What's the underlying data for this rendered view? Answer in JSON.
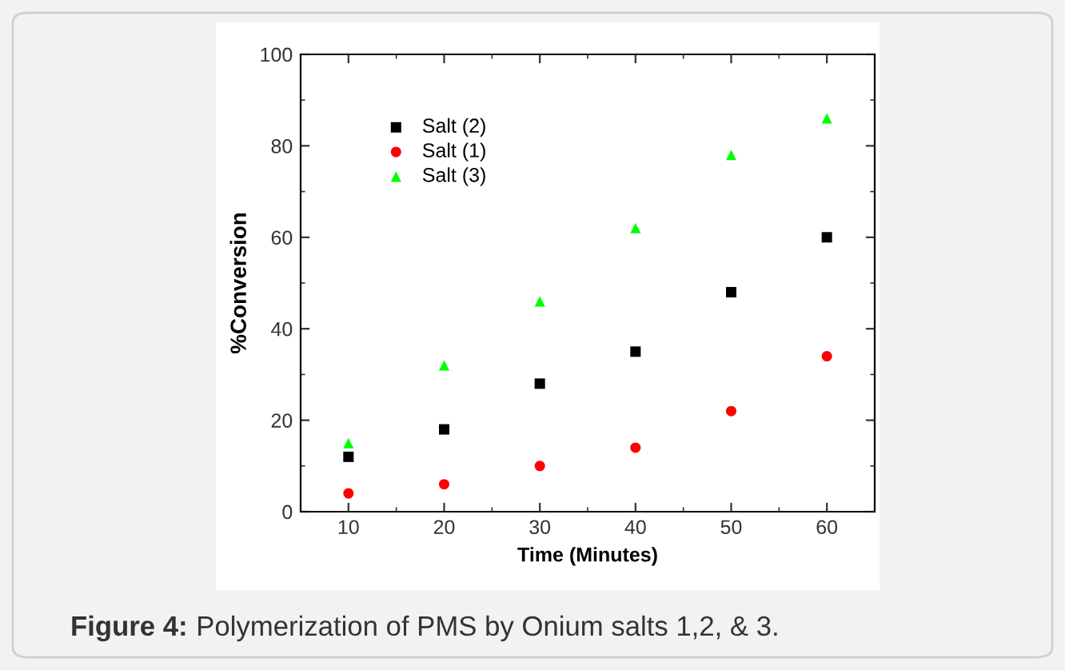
{
  "chart_data": {
    "type": "scatter",
    "xlabel": "Time (Minutes)",
    "ylabel": "%Conversion",
    "x": [
      10,
      20,
      30,
      40,
      50,
      60
    ],
    "series": [
      {
        "name": "Salt (2)",
        "color": "#000000",
        "marker": "square",
        "values": [
          12,
          18,
          28,
          35,
          48,
          60
        ]
      },
      {
        "name": "Salt (1)",
        "color": "#ff0000",
        "marker": "circle",
        "values": [
          4,
          6,
          10,
          14,
          22,
          34
        ]
      },
      {
        "name": "Salt (3)",
        "color": "#00ff00",
        "marker": "triangle",
        "values": [
          15,
          32,
          46,
          62,
          78,
          86
        ]
      }
    ],
    "xlim": [
      5,
      65
    ],
    "xticks": [
      10,
      20,
      30,
      40,
      50,
      60
    ],
    "ylim": [
      0,
      100
    ],
    "yticks": [
      0,
      20,
      40,
      60,
      80,
      100
    ],
    "grid": false,
    "legend": "top left",
    "annotations": [
      "Figure 4: Polymerization of PMS by Onium salts 1,2, & 3."
    ]
  }
}
